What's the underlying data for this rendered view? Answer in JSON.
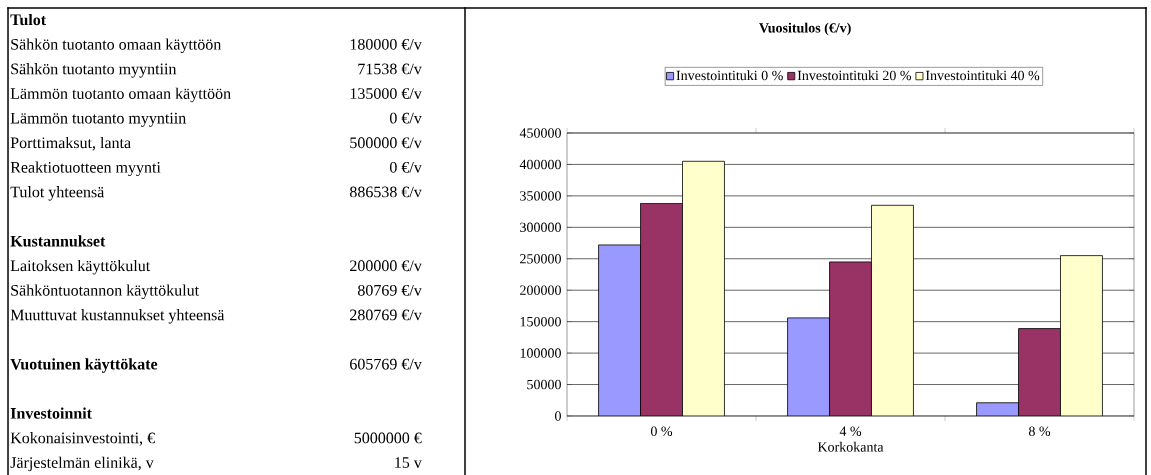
{
  "chart_data": [
    {
      "type": "other",
      "title": "Tulot",
      "categories": [
        "Sähkön tuotanto omaan käyttöön",
        "Sähkön tuotanto myyntiin",
        "Lämmön tuotanto omaan käyttöön",
        "Lämmön tuotanto myyntiin",
        "Porttimaksut, lanta",
        "Reaktiotuotteen myynti",
        "Tulot yhteensä"
      ],
      "value_labels": [
        "180000 €/v",
        "71538 €/v",
        "135000 €/v",
        "0 €/v",
        "500000 €/v",
        "0 €/v",
        "886538 €/v"
      ]
    },
    {
      "type": "other",
      "title": "Kustannukset",
      "categories": [
        "Laitoksen käyttökulut",
        "Sähköntuotannon käyttökulut",
        "Muuttuvat kustannukset yhteensä"
      ],
      "value_labels": [
        "200000 €/v",
        "80769 €/v",
        "280769 €/v"
      ]
    },
    {
      "type": "other",
      "title": "Vuotuinen käyttökate",
      "annotations": [
        "605769 €/v"
      ]
    },
    {
      "type": "other",
      "title": "Investoinnit",
      "categories": [
        "Kokonaisinvestointi, €",
        "Järjestelmän elinikä, v"
      ],
      "value_labels": [
        "5000000 €",
        "15 v"
      ]
    },
    {
      "type": "bar",
      "title": "Vuositulos (€/v)",
      "xlabel": "Korkokanta",
      "categories": [
        "0 %",
        "4 %",
        "8 %"
      ],
      "series": [
        {
          "name": "Investointituki 0 %",
          "color": "#9999ff",
          "values": [
            272000,
            156000,
            21000
          ]
        },
        {
          "name": "Investointituki 20 %",
          "color": "#993366",
          "values": [
            338000,
            245000,
            139000
          ]
        },
        {
          "name": "Investointituki 40 %",
          "color": "#ffffcc",
          "values": [
            405000,
            335000,
            255000
          ]
        }
      ],
      "ylim": [
        0,
        450000
      ],
      "yticks": [
        0,
        50000,
        100000,
        150000,
        200000,
        250000,
        300000,
        350000,
        400000,
        450000
      ],
      "grid": "y",
      "legend": "top"
    }
  ]
}
